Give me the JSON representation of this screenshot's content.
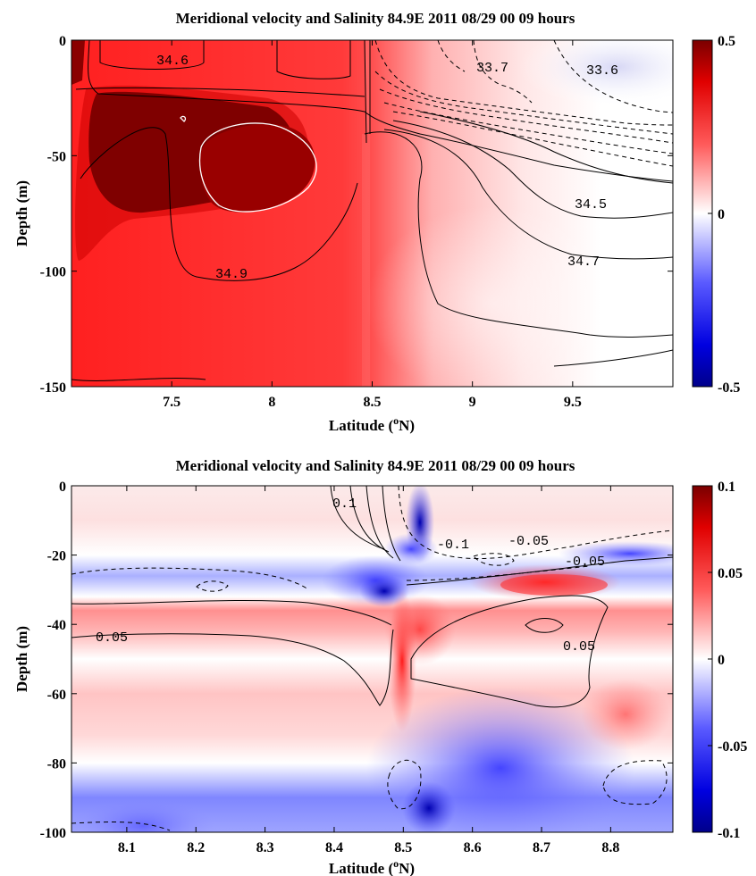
{
  "chart_data": [
    {
      "type": "heatmap",
      "title": "Meridional velocity and  Salinity 84.9E  2011 08/29 00  09 hours",
      "xlabel_main": "Latitude (",
      "xlabel_sup": "o",
      "xlabel_end": "N)",
      "ylabel": "Depth (m)",
      "xlim": [
        7.0,
        10.0
      ],
      "ylim": [
        -150,
        0
      ],
      "xticks": [
        "7.5",
        "8",
        "8.5",
        "9",
        "9.5"
      ],
      "yticks": [
        "0",
        "-50",
        "-100",
        "-150"
      ],
      "colorbar": {
        "min": -0.5,
        "max": 0.5,
        "ticks": [
          "0.5",
          "0",
          "-0.5"
        ]
      },
      "contour_labels": [
        "34.6",
        "33.7",
        "33.6",
        "34.5",
        "34.7",
        "34.9"
      ],
      "colors": {
        "high": "#7a0000",
        "mid": "#ffffff",
        "low": "#00008a"
      }
    },
    {
      "type": "heatmap",
      "title": "Meridional velocity and  Salinity 84.9E  2011 08/29 00  09 hours",
      "xlabel_main": "Latitude (",
      "xlabel_sup": "o",
      "xlabel_end": "N)",
      "ylabel": "Depth (m)",
      "xlim": [
        8.02,
        8.89
      ],
      "ylim": [
        -100,
        0
      ],
      "xticks": [
        "8.1",
        "8.2",
        "8.3",
        "8.4",
        "8.5",
        "8.6",
        "8.7",
        "8.8"
      ],
      "yticks": [
        "0",
        "-20",
        "-40",
        "-60",
        "-80",
        "-100"
      ],
      "colorbar": {
        "min": -0.1,
        "max": 0.1,
        "ticks": [
          "0.1",
          "0.05",
          "0",
          "-0.05",
          "-0.1"
        ]
      },
      "contour_labels": [
        "0.1",
        "-0.1",
        "-0.05",
        "-0.05",
        "0.05",
        "0.05"
      ],
      "colors": {
        "high": "#7a0000",
        "mid": "#ffffff",
        "low": "#00008a"
      }
    }
  ]
}
